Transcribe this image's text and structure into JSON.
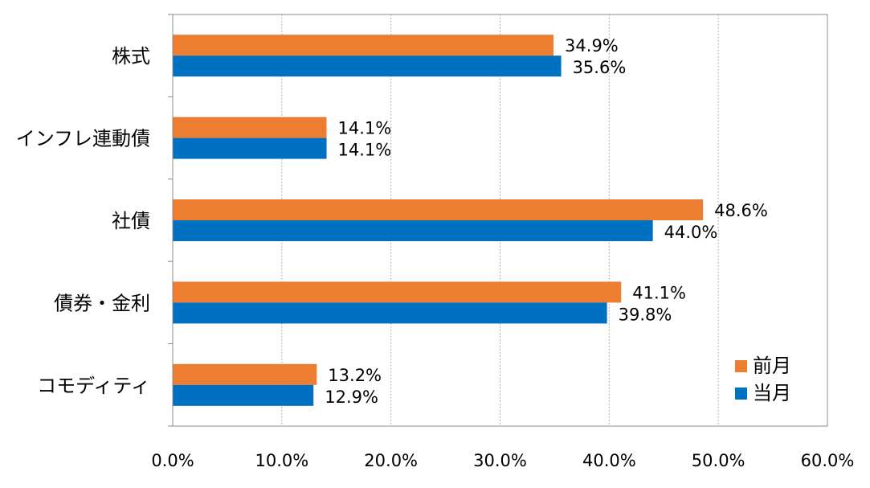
{
  "chart_data": {
    "type": "bar",
    "orientation": "horizontal",
    "categories": [
      "株式",
      "インフレ連動債",
      "社債",
      "債券・金利",
      "コモディティ"
    ],
    "series": [
      {
        "name": "前月",
        "color": "#ED7D31",
        "values": [
          34.9,
          14.1,
          48.6,
          41.1,
          13.2
        ],
        "labels": [
          "34.9%",
          "14.1%",
          "48.6%",
          "41.1%",
          "13.2%"
        ]
      },
      {
        "name": "当月",
        "color": "#0070C0",
        "values": [
          35.6,
          14.1,
          44.0,
          39.8,
          12.9
        ],
        "labels": [
          "35.6%",
          "14.1%",
          "44.0%",
          "39.8%",
          "12.9%"
        ]
      }
    ],
    "xlim": [
      0,
      60
    ],
    "xticks": [
      0,
      10,
      20,
      30,
      40,
      50,
      60
    ],
    "xtick_labels": [
      "0.0%",
      "10.0%",
      "20.0%",
      "30.0%",
      "40.0%",
      "50.0%",
      "60.0%"
    ],
    "grid": "vertical-dotted",
    "legend_position": "bottom-right"
  }
}
